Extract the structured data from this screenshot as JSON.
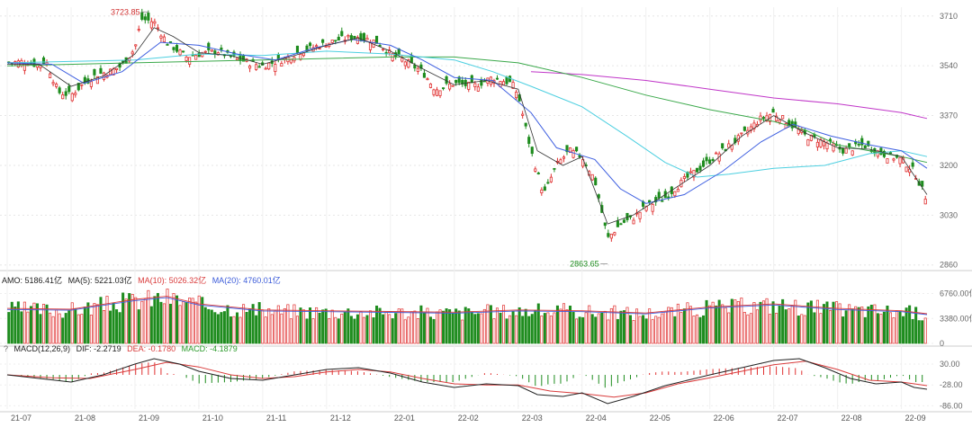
{
  "chart_data": [
    {
      "type": "candlestick",
      "panel": "price",
      "x_ticks": [
        "21-07",
        "21-08",
        "21-09",
        "21-10",
        "21-11",
        "21-12",
        "22-01",
        "22-02",
        "22-03",
        "22-04",
        "22-05",
        "22-06",
        "22-07",
        "22-08",
        "22-09"
      ],
      "y_ticks": [
        2860,
        3030,
        3200,
        3370,
        3540,
        3710
      ],
      "ylim": [
        2850,
        3740
      ],
      "annotations": [
        {
          "text": "3723.85",
          "value": 3723.85,
          "month_index": 2.1
        },
        {
          "text": "2863.65",
          "value": 2863.65,
          "month_index": 9.4
        }
      ],
      "close_path": [
        [
          0,
          3550
        ],
        [
          0.3,
          3555
        ],
        [
          0.5,
          3540
        ],
        [
          0.6,
          3560
        ],
        [
          0.8,
          3450
        ],
        [
          1.0,
          3440
        ],
        [
          1.2,
          3480
        ],
        [
          1.4,
          3510
        ],
        [
          1.6,
          3520
        ],
        [
          1.8,
          3540
        ],
        [
          2.0,
          3600
        ],
        [
          2.1,
          3700
        ],
        [
          2.3,
          3690
        ],
        [
          2.5,
          3620
        ],
        [
          2.8,
          3570
        ],
        [
          3.0,
          3580
        ],
        [
          3.3,
          3590
        ],
        [
          3.5,
          3570
        ],
        [
          3.8,
          3550
        ],
        [
          4.0,
          3540
        ],
        [
          4.3,
          3560
        ],
        [
          4.6,
          3590
        ],
        [
          4.9,
          3610
        ],
        [
          5.2,
          3630
        ],
        [
          5.5,
          3640
        ],
        [
          5.8,
          3620
        ],
        [
          6.0,
          3580
        ],
        [
          6.2,
          3560
        ],
        [
          6.5,
          3520
        ],
        [
          6.7,
          3460
        ],
        [
          7.0,
          3480
        ],
        [
          7.3,
          3470
        ],
        [
          7.6,
          3500
        ],
        [
          7.9,
          3480
        ],
        [
          8.0,
          3440
        ],
        [
          8.2,
          3250
        ],
        [
          8.4,
          3100
        ],
        [
          8.6,
          3200
        ],
        [
          8.8,
          3250
        ],
        [
          9.0,
          3230
        ],
        [
          9.2,
          3150
        ],
        [
          9.4,
          2950
        ],
        [
          9.6,
          3000
        ],
        [
          9.8,
          3020
        ],
        [
          10.0,
          3060
        ],
        [
          10.3,
          3090
        ],
        [
          10.6,
          3150
        ],
        [
          10.9,
          3200
        ],
        [
          11.2,
          3250
        ],
        [
          11.5,
          3300
        ],
        [
          11.8,
          3360
        ],
        [
          12.0,
          3380
        ],
        [
          12.2,
          3350
        ],
        [
          12.5,
          3300
        ],
        [
          12.8,
          3280
        ],
        [
          13.1,
          3250
        ],
        [
          13.4,
          3270
        ],
        [
          13.7,
          3240
        ],
        [
          14.0,
          3220
        ],
        [
          14.2,
          3180
        ],
        [
          14.4,
          3080
        ]
      ],
      "ma_short_path": [
        [
          0,
          3545
        ],
        [
          0.5,
          3545
        ],
        [
          1,
          3470
        ],
        [
          1.5,
          3505
        ],
        [
          2,
          3580
        ],
        [
          2.3,
          3670
        ],
        [
          2.6,
          3640
        ],
        [
          3,
          3585
        ],
        [
          3.5,
          3575
        ],
        [
          4,
          3545
        ],
        [
          4.5,
          3575
        ],
        [
          5,
          3610
        ],
        [
          5.5,
          3635
        ],
        [
          6,
          3590
        ],
        [
          6.5,
          3530
        ],
        [
          7,
          3475
        ],
        [
          7.5,
          3490
        ],
        [
          8,
          3460
        ],
        [
          8.3,
          3250
        ],
        [
          8.7,
          3200
        ],
        [
          9,
          3230
        ],
        [
          9.4,
          3000
        ],
        [
          9.8,
          3030
        ],
        [
          10.3,
          3100
        ],
        [
          11,
          3200
        ],
        [
          11.5,
          3300
        ],
        [
          12,
          3370
        ],
        [
          12.5,
          3310
        ],
        [
          13,
          3260
        ],
        [
          13.5,
          3255
        ],
        [
          14,
          3230
        ],
        [
          14.4,
          3100
        ]
      ],
      "ma_blue_path": [
        [
          0,
          3550
        ],
        [
          0.7,
          3545
        ],
        [
          1.2,
          3480
        ],
        [
          1.8,
          3520
        ],
        [
          2.4,
          3620
        ],
        [
          3,
          3610
        ],
        [
          3.6,
          3580
        ],
        [
          4.2,
          3560
        ],
        [
          4.8,
          3600
        ],
        [
          5.4,
          3630
        ],
        [
          6,
          3610
        ],
        [
          6.5,
          3560
        ],
        [
          7,
          3500
        ],
        [
          7.6,
          3490
        ],
        [
          8.2,
          3380
        ],
        [
          8.6,
          3260
        ],
        [
          9.2,
          3220
        ],
        [
          9.6,
          3120
        ],
        [
          10,
          3070
        ],
        [
          10.6,
          3100
        ],
        [
          11.2,
          3180
        ],
        [
          11.8,
          3280
        ],
        [
          12.3,
          3340
        ],
        [
          12.9,
          3300
        ],
        [
          13.5,
          3270
        ],
        [
          14,
          3250
        ],
        [
          14.4,
          3190
        ]
      ],
      "ma_cyan_path": [
        [
          0,
          3550
        ],
        [
          2,
          3560
        ],
        [
          3,
          3580
        ],
        [
          4,
          3575
        ],
        [
          5,
          3590
        ],
        [
          6,
          3580
        ],
        [
          7,
          3560
        ],
        [
          7.6,
          3520
        ],
        [
          8.2,
          3470
        ],
        [
          9,
          3400
        ],
        [
          9.7,
          3300
        ],
        [
          10.3,
          3210
        ],
        [
          10.8,
          3160
        ],
        [
          11.3,
          3170
        ],
        [
          12,
          3190
        ],
        [
          12.8,
          3200
        ],
        [
          13.5,
          3240
        ],
        [
          14,
          3250
        ],
        [
          14.4,
          3230
        ]
      ],
      "ma_green_path": [
        [
          0,
          3540
        ],
        [
          2,
          3550
        ],
        [
          4,
          3560
        ],
        [
          6,
          3570
        ],
        [
          7,
          3570
        ],
        [
          8,
          3550
        ],
        [
          9,
          3500
        ],
        [
          10,
          3440
        ],
        [
          11,
          3390
        ],
        [
          12,
          3350
        ],
        [
          12.5,
          3320
        ],
        [
          13,
          3270
        ],
        [
          13.5,
          3250
        ],
        [
          14,
          3230
        ],
        [
          14.4,
          3210
        ]
      ],
      "ma_purple_path": [
        [
          8.2,
          3520
        ],
        [
          9,
          3510
        ],
        [
          10,
          3490
        ],
        [
          11,
          3460
        ],
        [
          12,
          3430
        ],
        [
          13,
          3410
        ],
        [
          14,
          3380
        ],
        [
          14.4,
          3360
        ]
      ],
      "candle_seed": 7
    },
    {
      "type": "bar",
      "panel": "volume",
      "legend": {
        "amo": "AMO: 5186.41亿",
        "ma5": "MA(5): 5221.03亿",
        "ma10": "MA(10): 5026.32亿",
        "ma20": "MA(20): 4760.01亿"
      },
      "y_ticks": [
        "6760.00亿",
        "3380.00亿",
        "0"
      ],
      "y_tick_values": [
        6760,
        3380,
        0
      ],
      "ylim": [
        0,
        7800
      ],
      "level_path": [
        [
          0,
          4600
        ],
        [
          1,
          4500
        ],
        [
          2,
          5800
        ],
        [
          2.5,
          6200
        ],
        [
          3,
          5200
        ],
        [
          4,
          4400
        ],
        [
          5,
          4300
        ],
        [
          6,
          4200
        ],
        [
          7,
          4100
        ],
        [
          8,
          4400
        ],
        [
          9,
          4300
        ],
        [
          10,
          4000
        ],
        [
          11,
          4800
        ],
        [
          12,
          5200
        ],
        [
          13,
          4600
        ],
        [
          14,
          4300
        ],
        [
          14.4,
          3900
        ]
      ]
    },
    {
      "type": "bar",
      "panel": "macd",
      "legend": {
        "help": "?",
        "name": "MACD(12,26,9)",
        "dif": "DIF: -2.2719",
        "dea": "DEA: -0.1780",
        "macd": "MACD: -4.1879"
      },
      "y_ticks": [
        "30.00",
        "-28.00",
        "-86.00"
      ],
      "y_tick_values": [
        30,
        -28,
        -86
      ],
      "ylim": [
        -95,
        55
      ],
      "dif_path": [
        [
          0,
          0
        ],
        [
          0.5,
          -10
        ],
        [
          1,
          -20
        ],
        [
          1.5,
          0
        ],
        [
          2,
          30
        ],
        [
          2.3,
          45
        ],
        [
          2.7,
          30
        ],
        [
          3,
          10
        ],
        [
          3.5,
          -10
        ],
        [
          4,
          -15
        ],
        [
          4.5,
          0
        ],
        [
          5,
          15
        ],
        [
          5.5,
          20
        ],
        [
          6,
          5
        ],
        [
          6.5,
          -20
        ],
        [
          7,
          -35
        ],
        [
          7.5,
          -25
        ],
        [
          8,
          -30
        ],
        [
          8.3,
          -55
        ],
        [
          8.7,
          -60
        ],
        [
          9,
          -50
        ],
        [
          9.4,
          -80
        ],
        [
          9.8,
          -60
        ],
        [
          10.3,
          -30
        ],
        [
          11,
          0
        ],
        [
          11.5,
          20
        ],
        [
          12,
          40
        ],
        [
          12.4,
          45
        ],
        [
          12.8,
          20
        ],
        [
          13.2,
          -10
        ],
        [
          13.6,
          -25
        ],
        [
          14,
          -20
        ],
        [
          14.2,
          -35
        ],
        [
          14.4,
          -40
        ]
      ],
      "dea_path": [
        [
          0,
          0
        ],
        [
          0.7,
          -8
        ],
        [
          1.3,
          -10
        ],
        [
          2,
          15
        ],
        [
          2.5,
          35
        ],
        [
          3,
          22
        ],
        [
          3.5,
          0
        ],
        [
          4,
          -10
        ],
        [
          4.5,
          -5
        ],
        [
          5,
          8
        ],
        [
          5.5,
          15
        ],
        [
          6,
          8
        ],
        [
          6.5,
          -10
        ],
        [
          7,
          -25
        ],
        [
          7.5,
          -28
        ],
        [
          8,
          -28
        ],
        [
          8.5,
          -45
        ],
        [
          9,
          -52
        ],
        [
          9.5,
          -62
        ],
        [
          10,
          -50
        ],
        [
          10.5,
          -25
        ],
        [
          11,
          -8
        ],
        [
          11.5,
          10
        ],
        [
          12,
          28
        ],
        [
          12.5,
          38
        ],
        [
          13,
          15
        ],
        [
          13.5,
          -15
        ],
        [
          14,
          -20
        ],
        [
          14.4,
          -30
        ]
      ]
    }
  ]
}
